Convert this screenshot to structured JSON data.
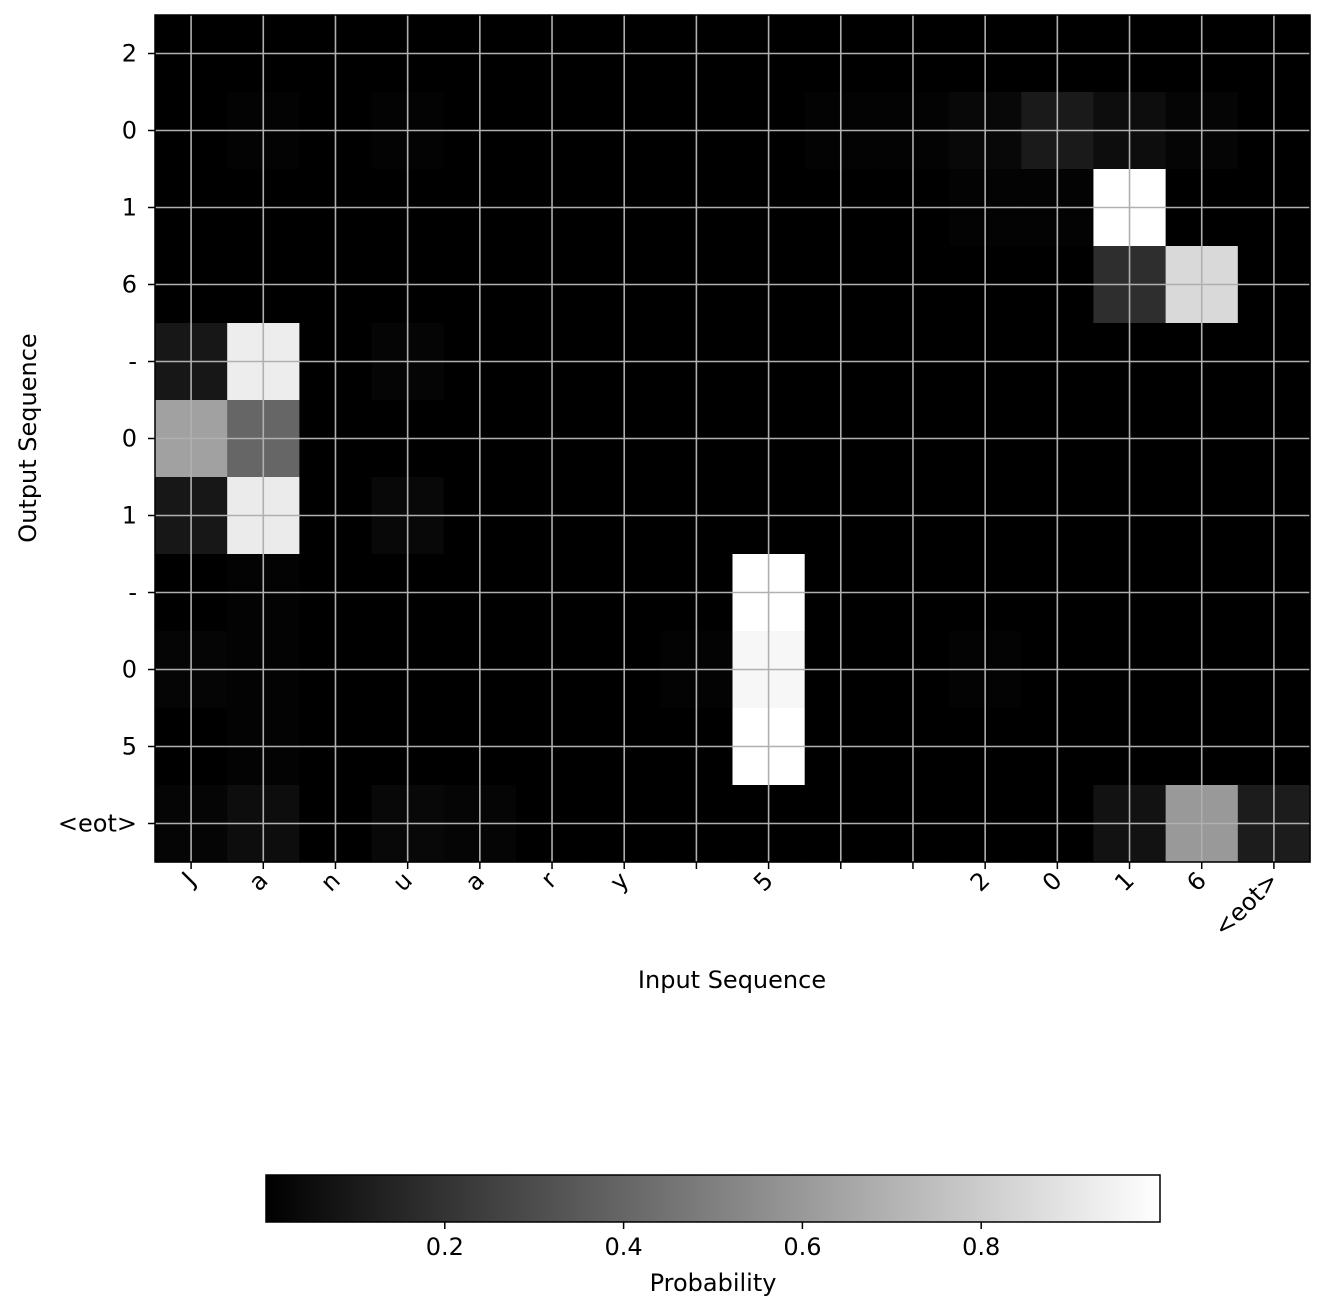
{
  "chart_data": {
    "type": "heatmap",
    "xlabel": "Input Sequence",
    "ylabel": "Output Sequence",
    "x_tokens": [
      "J",
      "a",
      "n",
      "u",
      "a",
      "r",
      "y",
      " ",
      "5",
      " ",
      " ",
      "2",
      "0",
      "1",
      "6",
      "<eot>"
    ],
    "x_tick_labels": [
      "J",
      "a",
      "n",
      "u",
      "a",
      "r",
      "y",
      "",
      "5",
      "",
      "",
      "2",
      "0",
      "1",
      "6",
      "<eot>"
    ],
    "y_tick_labels": [
      "2",
      "0",
      "1",
      "6",
      "-",
      "0",
      "1",
      "-",
      "0",
      "5",
      "<eot>"
    ],
    "values": [
      [
        0.0,
        0.0,
        0.0,
        0.0,
        0.0,
        0.0,
        0.0,
        0.0,
        0.0,
        0.0,
        0.0,
        0.0,
        0.0,
        0.0,
        0.0,
        0.0
      ],
      [
        0.0,
        0.01,
        0.0,
        0.01,
        0.0,
        0.0,
        0.0,
        0.0,
        0.0,
        0.01,
        0.01,
        0.03,
        0.1,
        0.05,
        0.02,
        0.0
      ],
      [
        0.0,
        0.0,
        0.0,
        0.0,
        0.0,
        0.0,
        0.0,
        0.0,
        0.0,
        0.0,
        0.0,
        0.01,
        0.01,
        1.0,
        0.0,
        0.0
      ],
      [
        0.0,
        0.0,
        0.0,
        0.0,
        0.0,
        0.0,
        0.0,
        0.0,
        0.0,
        0.0,
        0.0,
        0.0,
        0.0,
        0.18,
        0.85,
        0.0
      ],
      [
        0.09,
        0.93,
        0.0,
        0.02,
        0.0,
        0.0,
        0.0,
        0.0,
        0.0,
        0.0,
        0.0,
        0.0,
        0.0,
        0.0,
        0.0,
        0.0
      ],
      [
        0.63,
        0.4,
        0.0,
        0.0,
        0.0,
        0.0,
        0.0,
        0.0,
        0.0,
        0.0,
        0.0,
        0.0,
        0.0,
        0.0,
        0.0,
        0.0
      ],
      [
        0.09,
        0.92,
        0.0,
        0.03,
        0.0,
        0.0,
        0.0,
        0.0,
        0.0,
        0.0,
        0.0,
        0.0,
        0.0,
        0.0,
        0.0,
        0.0
      ],
      [
        0.0,
        0.01,
        0.0,
        0.0,
        0.0,
        0.0,
        0.0,
        0.0,
        1.0,
        0.0,
        0.0,
        0.0,
        0.0,
        0.0,
        0.0,
        0.0
      ],
      [
        0.02,
        0.01,
        0.0,
        0.0,
        0.0,
        0.0,
        0.0,
        0.01,
        0.97,
        0.0,
        0.0,
        0.01,
        0.0,
        0.0,
        0.0,
        0.0
      ],
      [
        0.0,
        0.01,
        0.0,
        0.0,
        0.0,
        0.0,
        0.0,
        0.0,
        1.0,
        0.0,
        0.0,
        0.0,
        0.0,
        0.0,
        0.0,
        0.0
      ],
      [
        0.02,
        0.05,
        0.0,
        0.03,
        0.02,
        0.0,
        0.0,
        0.0,
        0.0,
        0.0,
        0.0,
        0.0,
        0.0,
        0.07,
        0.6,
        0.11
      ]
    ],
    "colormap": "gray",
    "grid": true,
    "colorbar": {
      "label": "Probability",
      "range": [
        0.0,
        1.0
      ],
      "ticks": [
        0.2,
        0.4,
        0.6,
        0.8
      ],
      "tick_labels": [
        "0.2",
        "0.4",
        "0.6",
        "0.8"
      ],
      "orientation": "horizontal",
      "position": "bottom"
    }
  }
}
